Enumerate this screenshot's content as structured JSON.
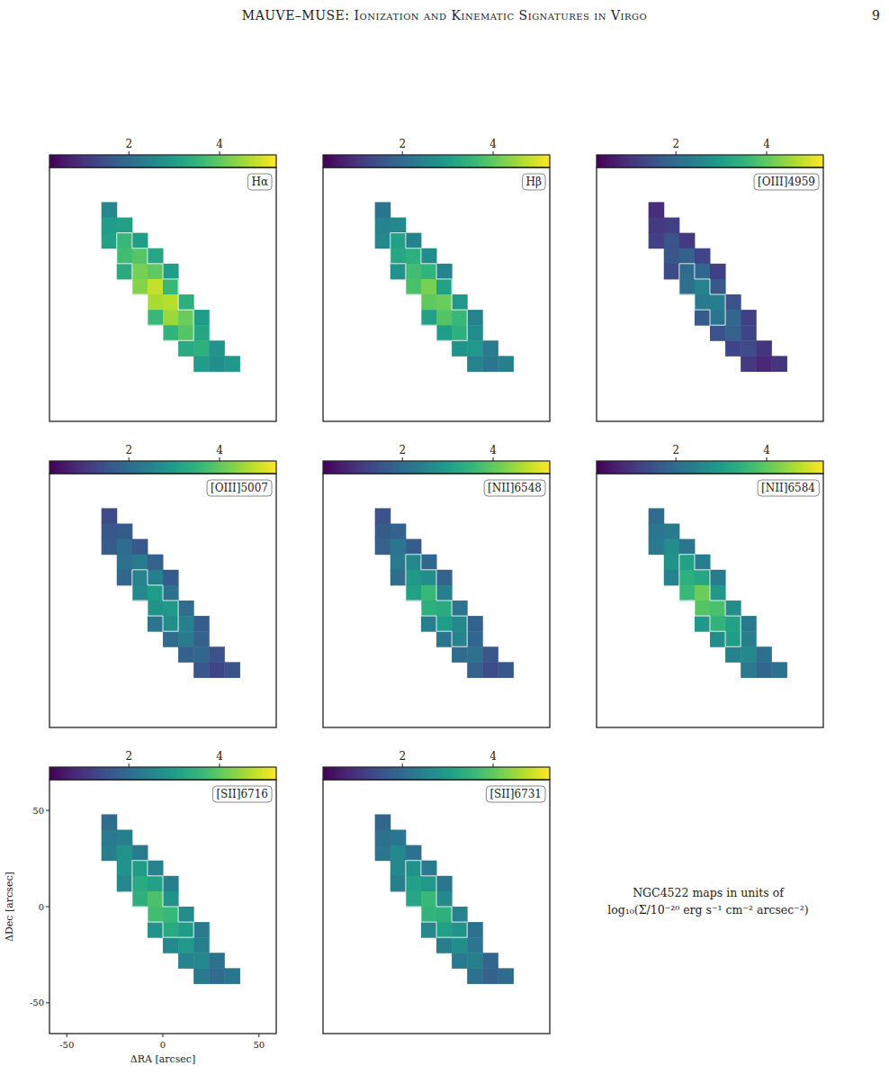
{
  "header": {
    "title": "MAUVE–MUSE: Ionization and Kinematic Signatures in Virgo",
    "page": 9
  },
  "caption": [
    "NGC4522 maps in units of",
    "log₁₀(Σ/10⁻²⁰ erg s⁻¹ cm⁻² arcsec⁻²)"
  ],
  "pixels": {
    "size": 8,
    "ra": [
      -28,
      -28,
      -20,
      -28,
      -20,
      -12,
      -20,
      -12,
      -4,
      -20,
      -12,
      -4,
      4,
      -12,
      -4,
      4,
      -4,
      4,
      12,
      -4,
      4,
      12,
      20,
      4,
      12,
      20,
      12,
      20,
      28,
      20,
      28,
      36
    ],
    "dec": [
      44,
      36,
      36,
      28,
      28,
      28,
      20,
      20,
      20,
      12,
      12,
      12,
      12,
      4,
      4,
      4,
      -4,
      -4,
      -4,
      -12,
      -12,
      -12,
      -12,
      -20,
      -20,
      -20,
      -28,
      -28,
      -28,
      -36,
      -36,
      -36
    ]
  },
  "chart_data": [
    {
      "type": "heatmap",
      "title": "Hα",
      "xlim": [
        -59,
        59
      ],
      "ylim": [
        -66,
        66
      ],
      "xticks": [
        -50,
        0,
        50
      ],
      "yticks": [
        -50,
        0,
        50
      ],
      "tick_labels": false,
      "colorbar": {
        "range": [
          0.25,
          5.25
        ],
        "ticks": [
          2,
          4
        ]
      },
      "contour_level": 3.5,
      "values": [
        2.6,
        3.0,
        3.1,
        3.1,
        3.6,
        3.0,
        3.7,
        3.9,
        3.2,
        3.3,
        4.2,
        4.0,
        3.0,
        4.3,
        4.8,
        3.6,
        4.6,
        4.7,
        3.4,
        3.6,
        4.5,
        4.1,
        3.0,
        3.5,
        3.9,
        3.2,
        3.3,
        3.4,
        2.8,
        3.0,
        2.7,
        2.9
      ]
    },
    {
      "type": "heatmap",
      "title": "Hβ",
      "xlim": [
        -59,
        59
      ],
      "ylim": [
        -66,
        66
      ],
      "xticks": [
        -50,
        0,
        50
      ],
      "yticks": [
        -50,
        0,
        50
      ],
      "tick_labels": false,
      "colorbar": {
        "range": [
          0.25,
          5.25
        ],
        "ticks": [
          2,
          4
        ]
      },
      "contour_level": 3.0,
      "values": [
        2.2,
        2.5,
        2.6,
        2.6,
        3.1,
        2.5,
        3.2,
        3.4,
        2.7,
        2.8,
        3.7,
        3.5,
        2.5,
        3.8,
        4.2,
        3.1,
        4.0,
        4.1,
        2.9,
        3.1,
        3.9,
        3.6,
        2.5,
        3.0,
        3.4,
        2.7,
        2.8,
        2.9,
        2.3,
        2.5,
        2.2,
        2.4
      ]
    },
    {
      "type": "heatmap",
      "title": "[OIII]4959",
      "xlim": [
        -59,
        59
      ],
      "ylim": [
        -66,
        66
      ],
      "xticks": [
        -50,
        0,
        50
      ],
      "yticks": [
        -50,
        0,
        50
      ],
      "tick_labels": false,
      "colorbar": {
        "range": [
          0.25,
          5.25
        ],
        "ticks": [
          2,
          4
        ]
      },
      "contour_level": 2.0,
      "values": [
        0.9,
        1.1,
        1.2,
        1.2,
        1.5,
        1.1,
        1.6,
        1.8,
        1.3,
        1.4,
        2.0,
        1.9,
        1.2,
        2.1,
        2.5,
        1.6,
        2.3,
        2.4,
        1.5,
        1.7,
        2.2,
        1.9,
        1.2,
        1.5,
        1.8,
        1.3,
        1.3,
        1.4,
        1.0,
        1.1,
        0.8,
        1.0
      ]
    },
    {
      "type": "heatmap",
      "title": "[OIII]5007",
      "xlim": [
        -59,
        59
      ],
      "ylim": [
        -66,
        66
      ],
      "xticks": [
        -50,
        0,
        50
      ],
      "yticks": [
        -50,
        0,
        50
      ],
      "tick_labels": false,
      "colorbar": {
        "range": [
          0.25,
          5.25
        ],
        "ticks": [
          2,
          4
        ]
      },
      "contour_level": 2.5,
      "values": [
        1.4,
        1.6,
        1.7,
        1.7,
        2.0,
        1.6,
        2.1,
        2.3,
        1.8,
        1.9,
        2.5,
        2.4,
        1.7,
        2.6,
        3.0,
        2.1,
        2.8,
        2.9,
        2.0,
        2.2,
        2.7,
        2.4,
        1.7,
        2.0,
        2.3,
        1.8,
        1.8,
        1.9,
        1.5,
        1.6,
        1.3,
        1.5
      ]
    },
    {
      "type": "heatmap",
      "title": "[NII]6548",
      "xlim": [
        -59,
        59
      ],
      "ylim": [
        -66,
        66
      ],
      "xticks": [
        -50,
        0,
        50
      ],
      "yticks": [
        -50,
        0,
        50
      ],
      "tick_labels": false,
      "colorbar": {
        "range": [
          0.25,
          5.25
        ],
        "ticks": [
          2,
          4
        ]
      },
      "contour_level": 2.5,
      "values": [
        1.5,
        1.7,
        1.8,
        1.8,
        2.2,
        1.7,
        2.3,
        2.6,
        1.9,
        2.0,
        2.9,
        2.7,
        1.8,
        3.1,
        3.6,
        2.4,
        3.4,
        3.3,
        2.2,
        2.4,
        3.0,
        2.6,
        1.8,
        2.2,
        2.5,
        1.9,
        2.0,
        2.1,
        1.6,
        1.8,
        1.4,
        1.6
      ]
    },
    {
      "type": "heatmap",
      "title": "[NII]6584",
      "xlim": [
        -59,
        59
      ],
      "ylim": [
        -66,
        66
      ],
      "xticks": [
        -50,
        0,
        50
      ],
      "yticks": [
        -50,
        0,
        50
      ],
      "tick_labels": false,
      "colorbar": {
        "range": [
          0.25,
          5.25
        ],
        "ticks": [
          2,
          4
        ]
      },
      "contour_level": 3.0,
      "values": [
        2.0,
        2.2,
        2.3,
        2.3,
        2.7,
        2.2,
        2.8,
        3.1,
        2.4,
        2.5,
        3.4,
        3.2,
        2.3,
        3.6,
        4.1,
        2.9,
        3.9,
        3.8,
        2.7,
        2.9,
        3.5,
        3.1,
        2.3,
        2.7,
        3.0,
        2.4,
        2.5,
        2.6,
        2.1,
        2.3,
        1.9,
        2.1
      ]
    },
    {
      "type": "heatmap",
      "title": "[SII]6716",
      "xlim": [
        -59,
        59
      ],
      "ylim": [
        -66,
        66
      ],
      "xticks": [
        -50,
        0,
        50
      ],
      "yticks": [
        -50,
        0,
        50
      ],
      "xlabel": "ΔRA [arcsec]",
      "ylabel": "ΔDec [arcsec]",
      "colorbar": {
        "range": [
          0.25,
          5.25
        ],
        "ticks": [
          2,
          4
        ]
      },
      "contour_level": 3.0,
      "values": [
        2.0,
        2.3,
        2.4,
        2.4,
        2.8,
        2.3,
        2.8,
        3.0,
        2.5,
        2.6,
        3.3,
        3.1,
        2.4,
        3.4,
        3.8,
        2.8,
        3.7,
        3.6,
        2.7,
        2.8,
        3.3,
        3.0,
        2.3,
        2.6,
        2.9,
        2.4,
        2.5,
        2.6,
        2.1,
        2.3,
        2.0,
        2.2
      ]
    },
    {
      "type": "heatmap",
      "title": "[SII]6731",
      "xlim": [
        -59,
        59
      ],
      "ylim": [
        -66,
        66
      ],
      "xticks": [
        -50,
        0,
        50
      ],
      "yticks": [
        -50,
        0,
        50
      ],
      "tick_labels": false,
      "colorbar": {
        "range": [
          0.25,
          5.25
        ],
        "ticks": [
          2,
          4
        ]
      },
      "contour_level": 2.8,
      "values": [
        1.9,
        2.1,
        2.2,
        2.2,
        2.6,
        2.1,
        2.6,
        2.8,
        2.3,
        2.4,
        3.1,
        2.9,
        2.2,
        3.2,
        3.6,
        2.6,
        3.5,
        3.4,
        2.5,
        2.6,
        3.1,
        2.8,
        2.1,
        2.4,
        2.7,
        2.2,
        2.3,
        2.4,
        1.9,
        2.1,
        1.8,
        2.0
      ]
    }
  ]
}
